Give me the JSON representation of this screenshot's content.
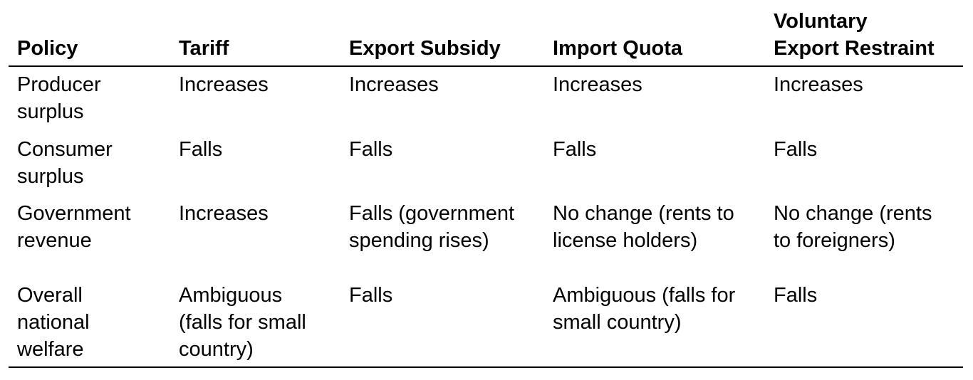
{
  "table": {
    "headers": {
      "policy": "Policy",
      "tariff": "Tariff",
      "export_subsidy": "Export Subsidy",
      "import_quota": "Import Quota",
      "ver_line1": "Voluntary",
      "ver_line2": "Export Restraint"
    },
    "rows": [
      {
        "label": [
          "Producer",
          "surplus"
        ],
        "tariff": [
          "Increases"
        ],
        "export_subsidy": [
          "Increases"
        ],
        "import_quota": [
          "Increases"
        ],
        "ver": [
          "Increases"
        ]
      },
      {
        "label": [
          "Consumer",
          "surplus"
        ],
        "tariff": [
          "Falls"
        ],
        "export_subsidy": [
          "Falls"
        ],
        "import_quota": [
          "Falls"
        ],
        "ver": [
          "Falls"
        ]
      },
      {
        "label": [
          "Government",
          "revenue"
        ],
        "tariff": [
          "Increases"
        ],
        "export_subsidy": [
          "Falls (government",
          "spending rises)"
        ],
        "import_quota": [
          "No change (rents to",
          "license holders)"
        ],
        "ver": [
          "No change (rents",
          "to foreigners)"
        ]
      },
      {
        "label": [
          "Overall",
          "national",
          "welfare"
        ],
        "tariff": [
          "Ambiguous",
          "(falls for small",
          "country)"
        ],
        "export_subsidy": [
          "Falls"
        ],
        "import_quota": [
          "Ambiguous (falls for",
          "small country)"
        ],
        "ver": [
          "Falls"
        ]
      }
    ]
  }
}
